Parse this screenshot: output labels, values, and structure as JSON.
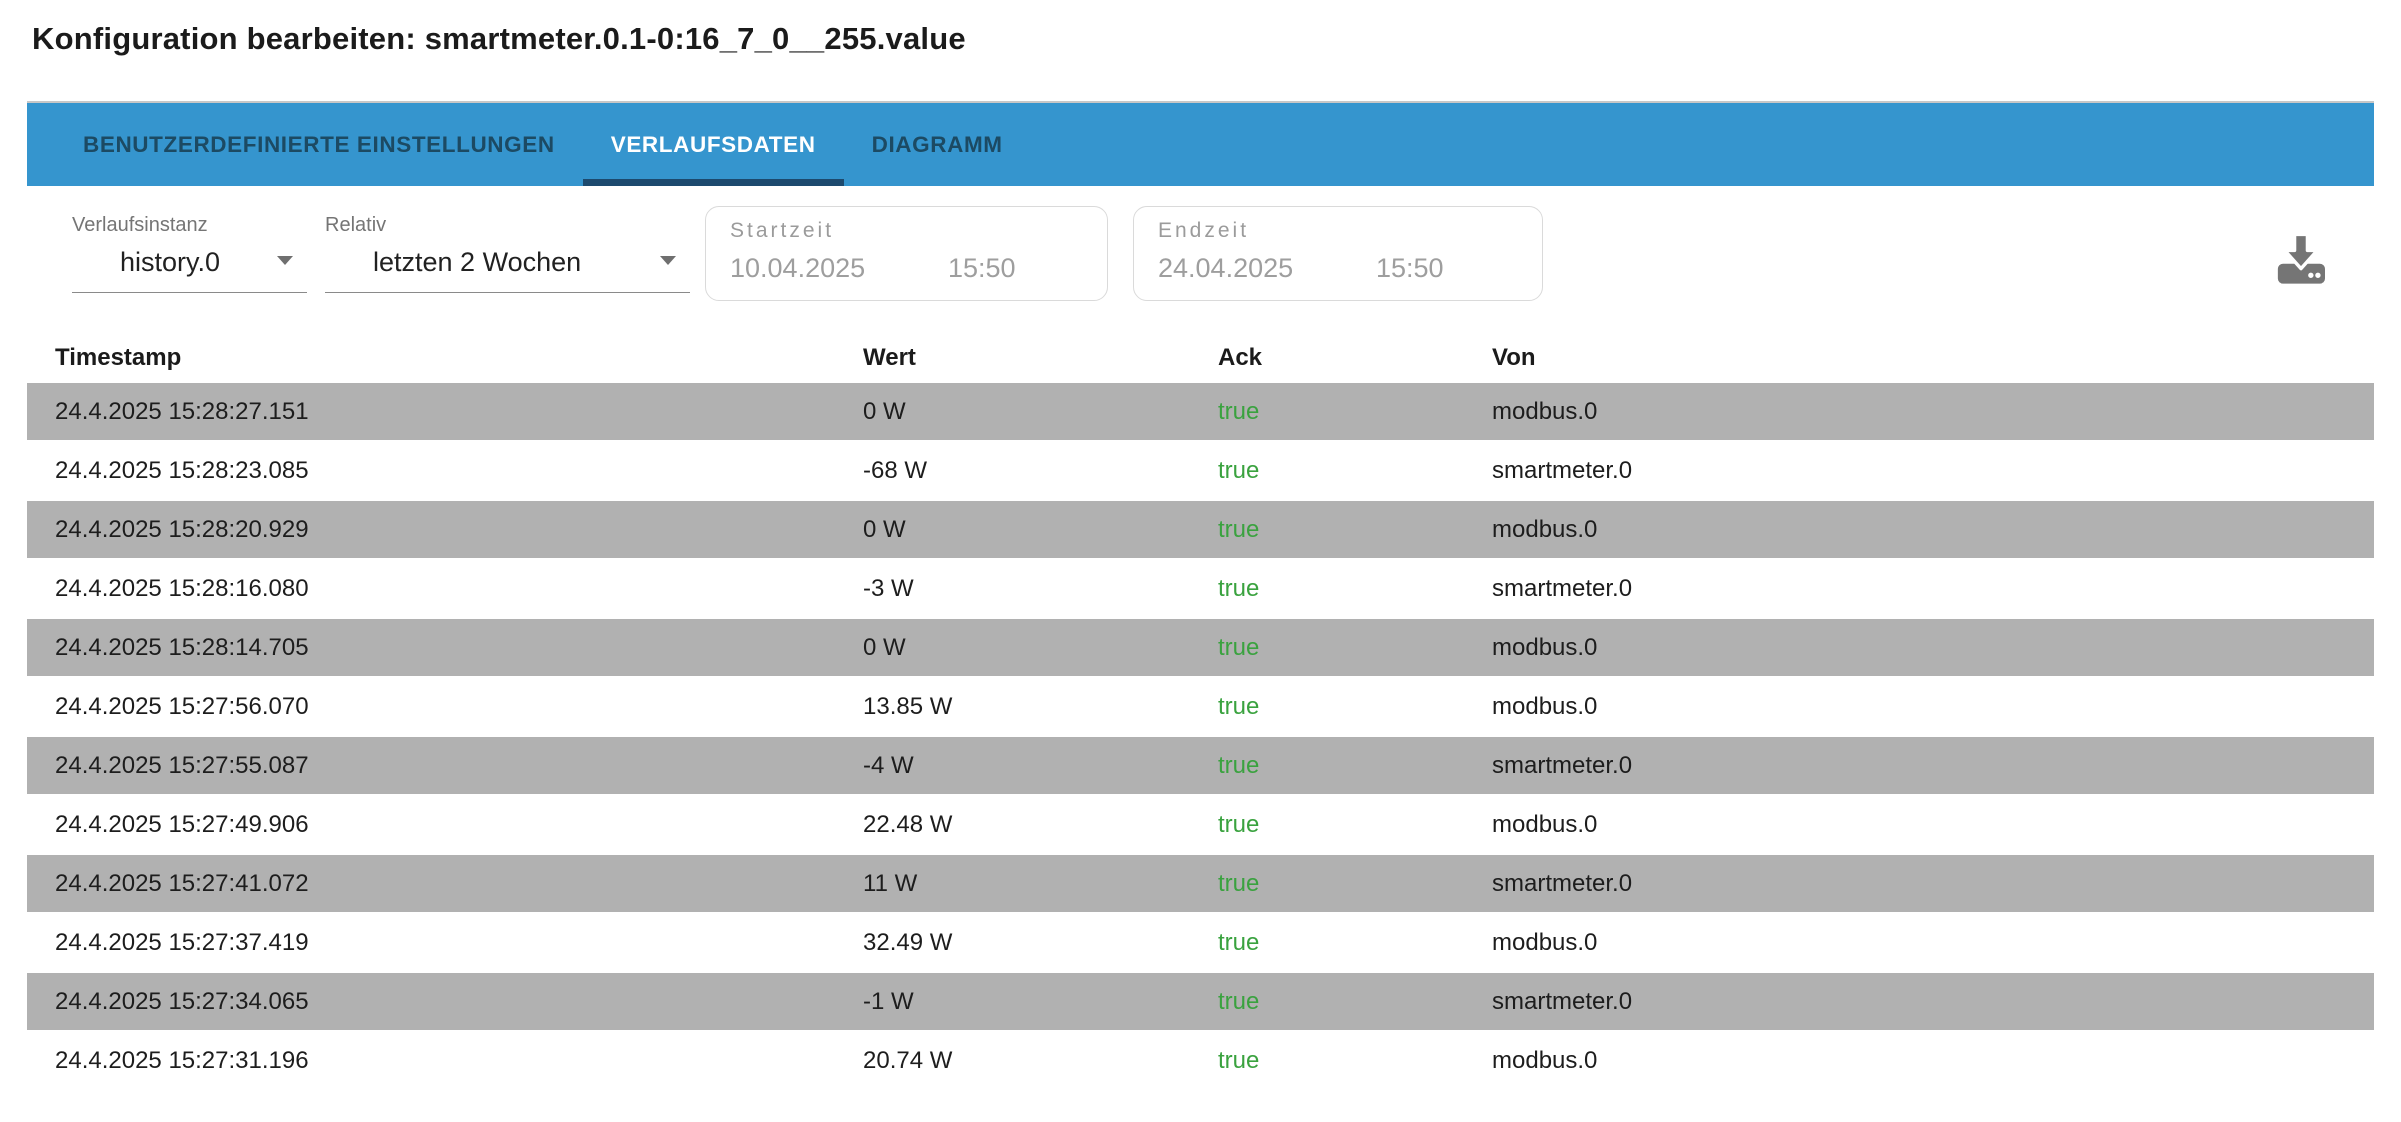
{
  "page": {
    "title": "Konfiguration bearbeiten: smartmeter.0.1-0:16_7_0__255.value"
  },
  "tabs": [
    {
      "label": "BENUTZERDEFINIERTE EINSTELLUNGEN",
      "active": false
    },
    {
      "label": "VERLAUFSDATEN",
      "active": true
    },
    {
      "label": "DIAGRAMM",
      "active": false
    }
  ],
  "filters": {
    "instance": {
      "label": "Verlaufsinstanz",
      "value": "history.0"
    },
    "relative": {
      "label": "Relativ",
      "value": "letzten 2 Wochen"
    },
    "start": {
      "label": "Startzeit",
      "date": "10.04.2025",
      "time": "15:50"
    },
    "end": {
      "label": "Endzeit",
      "date": "24.04.2025",
      "time": "15:50"
    },
    "download_icon": "download-icon"
  },
  "table": {
    "columns": [
      "Timestamp",
      "Wert",
      "Ack",
      "Von"
    ],
    "rows": [
      {
        "ts": "24.4.2025 15:28:27.151",
        "value": "0 W",
        "ack": "true",
        "from": "modbus.0"
      },
      {
        "ts": "24.4.2025 15:28:23.085",
        "value": "-68 W",
        "ack": "true",
        "from": "smartmeter.0"
      },
      {
        "ts": "24.4.2025 15:28:20.929",
        "value": "0 W",
        "ack": "true",
        "from": "modbus.0"
      },
      {
        "ts": "24.4.2025 15:28:16.080",
        "value": "-3 W",
        "ack": "true",
        "from": "smartmeter.0"
      },
      {
        "ts": "24.4.2025 15:28:14.705",
        "value": "0 W",
        "ack": "true",
        "from": "modbus.0"
      },
      {
        "ts": "24.4.2025 15:27:56.070",
        "value": "13.85 W",
        "ack": "true",
        "from": "modbus.0"
      },
      {
        "ts": "24.4.2025 15:27:55.087",
        "value": "-4 W",
        "ack": "true",
        "from": "smartmeter.0"
      },
      {
        "ts": "24.4.2025 15:27:49.906",
        "value": "22.48 W",
        "ack": "true",
        "from": "modbus.0"
      },
      {
        "ts": "24.4.2025 15:27:41.072",
        "value": "11 W",
        "ack": "true",
        "from": "smartmeter.0"
      },
      {
        "ts": "24.4.2025 15:27:37.419",
        "value": "32.49 W",
        "ack": "true",
        "from": "modbus.0"
      },
      {
        "ts": "24.4.2025 15:27:34.065",
        "value": "-1 W",
        "ack": "true",
        "from": "smartmeter.0"
      },
      {
        "ts": "24.4.2025 15:27:31.196",
        "value": "20.74 W",
        "ack": "true",
        "from": "modbus.0"
      }
    ]
  },
  "colors": {
    "tabbar_background": "#3595ce",
    "tab_text_inactive": "#1c4a63",
    "tab_text_active": "#ffffff",
    "active_tab_indicator": "#1d4a6e",
    "row_stripe": "#b1b1b1",
    "ack_true_green": "#3aa23f",
    "disabled_text": "#9e9e9e",
    "icon_gray": "#757575"
  }
}
